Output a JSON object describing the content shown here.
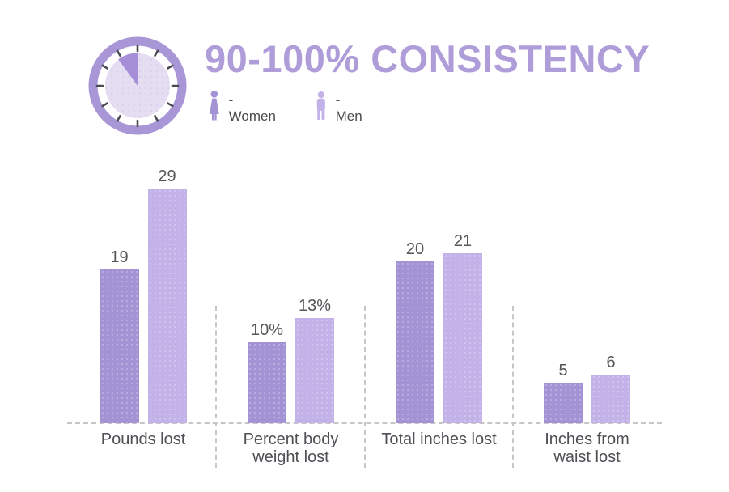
{
  "header": {
    "title": "90-100% CONSISTENCY",
    "legend": [
      {
        "id": "women",
        "label": "- Women"
      },
      {
        "id": "men",
        "label": "- Men"
      }
    ],
    "clock_icon": "clock showing a 10% wedge missing (90-100%)"
  },
  "colors": {
    "women_bar": "#a392d4",
    "men_bar": "#c2b2e8",
    "title": "#ae9dd9",
    "clock_ring": "#a896d6",
    "clock_face": "#e5def2",
    "clock_wedge": "#a78fd8",
    "label_text": "#55555a",
    "dashed_lines": "#c6c6c6"
  },
  "chart_data": {
    "type": "bar",
    "title": "90-100% CONSISTENCY",
    "categories": [
      "Pounds lost",
      "Percent body\nweight lost",
      "Total inches lost",
      "Inches from\nwaist lost"
    ],
    "series": [
      {
        "name": "Women",
        "values": [
          19,
          10,
          20,
          5
        ],
        "labels": [
          "19",
          "10%",
          "20",
          "5"
        ],
        "color": "#a392d4"
      },
      {
        "name": "Men",
        "values": [
          29,
          13,
          21,
          6
        ],
        "labels": [
          "29",
          "13%",
          "21",
          "6"
        ],
        "color": "#c2b2e8"
      }
    ],
    "ylim": [
      0,
      30
    ],
    "xlabel": "",
    "ylabel": "",
    "grid": false,
    "axis_visible": false,
    "baseline": "dashed",
    "legend_position": "top"
  }
}
